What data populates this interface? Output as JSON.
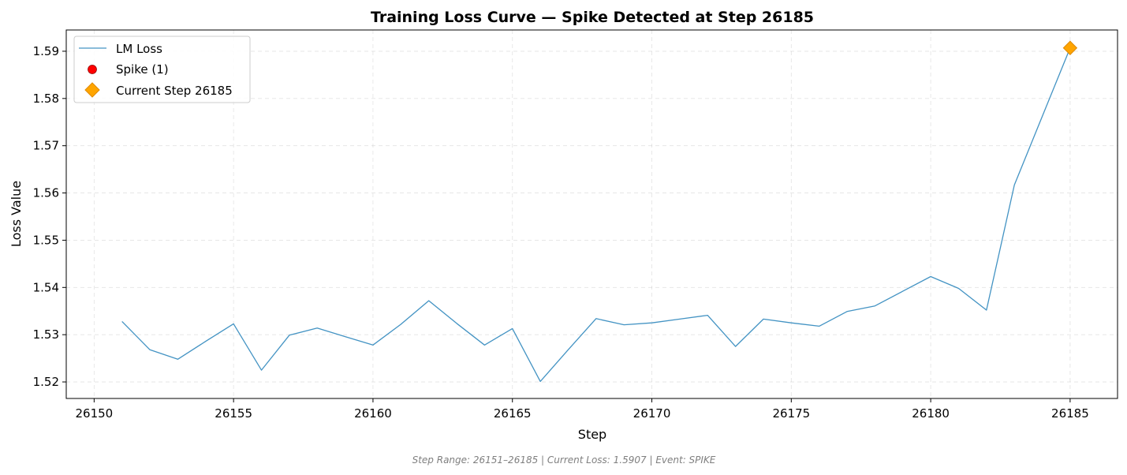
{
  "chart_data": {
    "type": "line",
    "title": "Training Loss Curve — Spike Detected at Step 26185",
    "xlabel": "Step",
    "ylabel": "Loss Value",
    "xlim": [
      26149,
      26186.7
    ],
    "ylim": [
      1.5165,
      1.5945
    ],
    "x_ticks": [
      26150,
      26155,
      26160,
      26165,
      26170,
      26175,
      26180,
      26185
    ],
    "y_ticks": [
      1.52,
      1.53,
      1.54,
      1.55,
      1.56,
      1.57,
      1.58,
      1.59
    ],
    "y_tick_labels": [
      "1.52",
      "1.53",
      "1.54",
      "1.55",
      "1.56",
      "1.57",
      "1.58",
      "1.59"
    ],
    "grid": true,
    "legend_position": "top-left",
    "series": [
      {
        "name": "LM Loss",
        "color": "#4393c3",
        "x": [
          26151,
          26152,
          26153,
          26154,
          26155,
          26156,
          26157,
          26158,
          26159,
          26160,
          26161,
          26162,
          26163,
          26164,
          26165,
          26166,
          26167,
          26168,
          26169,
          26170,
          26171,
          26172,
          26173,
          26174,
          26175,
          26176,
          26177,
          26178,
          26179,
          26180,
          26181,
          26182,
          26183,
          26184,
          26185
        ],
        "y": [
          1.5328,
          1.5268,
          1.5248,
          1.5286,
          1.5323,
          1.5225,
          1.5299,
          1.5314,
          1.5296,
          1.5278,
          1.5322,
          1.5372,
          1.5324,
          1.5278,
          1.5313,
          1.5201,
          1.5268,
          1.5334,
          1.5321,
          1.5325,
          1.5333,
          1.5341,
          1.5275,
          1.5333,
          1.5325,
          1.5318,
          1.5349,
          1.5361,
          1.5392,
          1.5423,
          1.5398,
          1.5352,
          1.5617,
          1.5762,
          1.5907
        ]
      }
    ],
    "spikes": {
      "name": "Spike (1)",
      "color": "#ff0000",
      "x": [
        26185
      ],
      "y": [
        1.5907
      ]
    },
    "current": {
      "name": "Current Step 26185",
      "color": "#ffa500",
      "x": 26185,
      "y": 1.5907
    }
  },
  "footer": "Step Range: 26151–26185 | Current Loss: 1.5907 | Event: SPIKE"
}
